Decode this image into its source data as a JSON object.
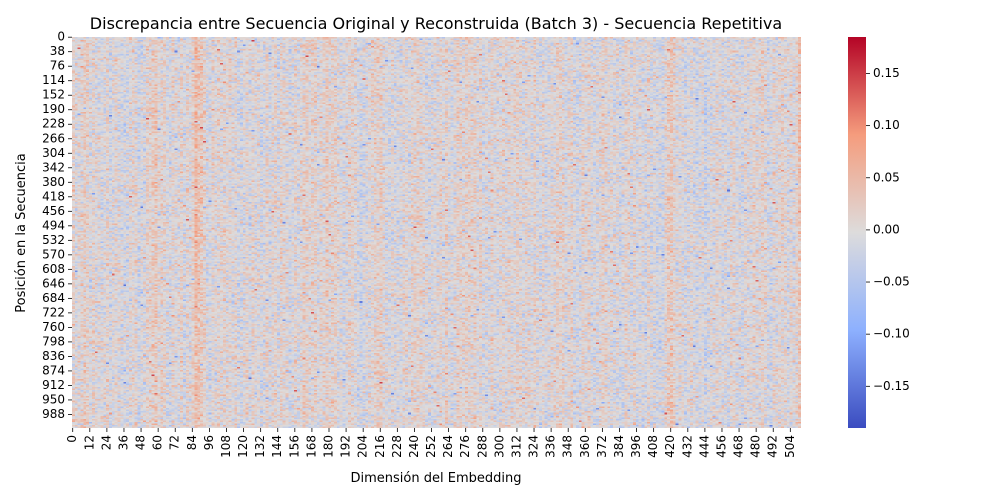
{
  "chart_data": {
    "type": "heatmap",
    "title": "Discrepancia entre Secuencia Original y Reconstruida (Batch 3) - Secuencia Repetitiva",
    "xlabel": "Dimensión del Embedding",
    "ylabel": "Posición en la Secuencia",
    "x_ticks": [
      "0",
      "12",
      "24",
      "36",
      "48",
      "60",
      "72",
      "84",
      "96",
      "108",
      "120",
      "132",
      "144",
      "156",
      "168",
      "180",
      "192",
      "204",
      "216",
      "228",
      "240",
      "252",
      "264",
      "276",
      "288",
      "300",
      "312",
      "324",
      "336",
      "348",
      "360",
      "372",
      "384",
      "396",
      "408",
      "420",
      "432",
      "444",
      "456",
      "468",
      "480",
      "492",
      "504"
    ],
    "y_ticks": [
      "0",
      "38",
      "76",
      "114",
      "152",
      "190",
      "228",
      "266",
      "304",
      "342",
      "380",
      "418",
      "456",
      "494",
      "532",
      "570",
      "608",
      "646",
      "684",
      "722",
      "760",
      "798",
      "836",
      "874",
      "912",
      "950",
      "988"
    ],
    "x_range": [
      0,
      512
    ],
    "y_range": [
      0,
      1024
    ],
    "colormap": "coolwarm",
    "colorbar": {
      "min": -0.19,
      "max": 0.185,
      "ticks": [
        "−0.15",
        "−0.10",
        "−0.05",
        "0.00",
        "0.05",
        "0.10",
        "0.15"
      ],
      "tick_values": [
        -0.15,
        -0.1,
        -0.05,
        0.0,
        0.05,
        0.1,
        0.15
      ]
    },
    "value_spread": 0.05,
    "column_bias": [
      {
        "dim": 8,
        "bias": 0.02
      },
      {
        "dim": 48,
        "bias": -0.02
      },
      {
        "dim": 58,
        "bias": 0.015
      },
      {
        "dim": 86,
        "bias": 0.045
      },
      {
        "dim": 90,
        "bias": 0.03
      },
      {
        "dim": 132,
        "bias": -0.02
      },
      {
        "dim": 178,
        "bias": 0.02
      },
      {
        "dim": 200,
        "bias": -0.015
      },
      {
        "dim": 216,
        "bias": 0.02
      },
      {
        "dim": 280,
        "bias": 0.02
      },
      {
        "dim": 384,
        "bias": -0.02
      },
      {
        "dim": 420,
        "bias": 0.02
      },
      {
        "dim": 444,
        "bias": -0.02
      },
      {
        "dim": 510,
        "bias": 0.04
      }
    ]
  }
}
